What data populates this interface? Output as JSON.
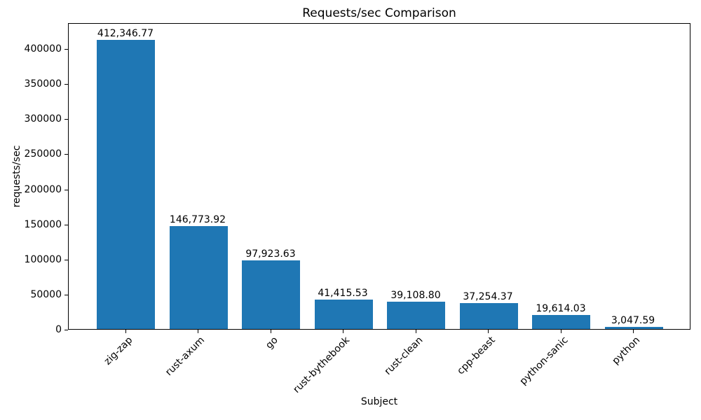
{
  "chart_data": {
    "type": "bar",
    "title": "Requests/sec Comparison",
    "xlabel": "Subject",
    "ylabel": "requests/sec",
    "categories": [
      "zig-zap",
      "rust-axum",
      "go",
      "rust-bythebook",
      "rust-clean",
      "cpp-beast",
      "python-sanic",
      "python"
    ],
    "values": [
      412346.77,
      146773.92,
      97923.63,
      41415.53,
      39108.8,
      37254.37,
      19614.03,
      3047.59
    ],
    "value_labels": [
      "412,346.77",
      "146,773.92",
      "97,923.63",
      "41,415.53",
      "39,108.80",
      "37,254.37",
      "19,614.03",
      "3,047.59"
    ],
    "yticks": [
      0,
      50000,
      100000,
      150000,
      200000,
      250000,
      300000,
      350000,
      400000
    ],
    "ylim": [
      0,
      437000
    ],
    "bar_color": "#1f77b4",
    "grid": "off",
    "legend": "none"
  }
}
